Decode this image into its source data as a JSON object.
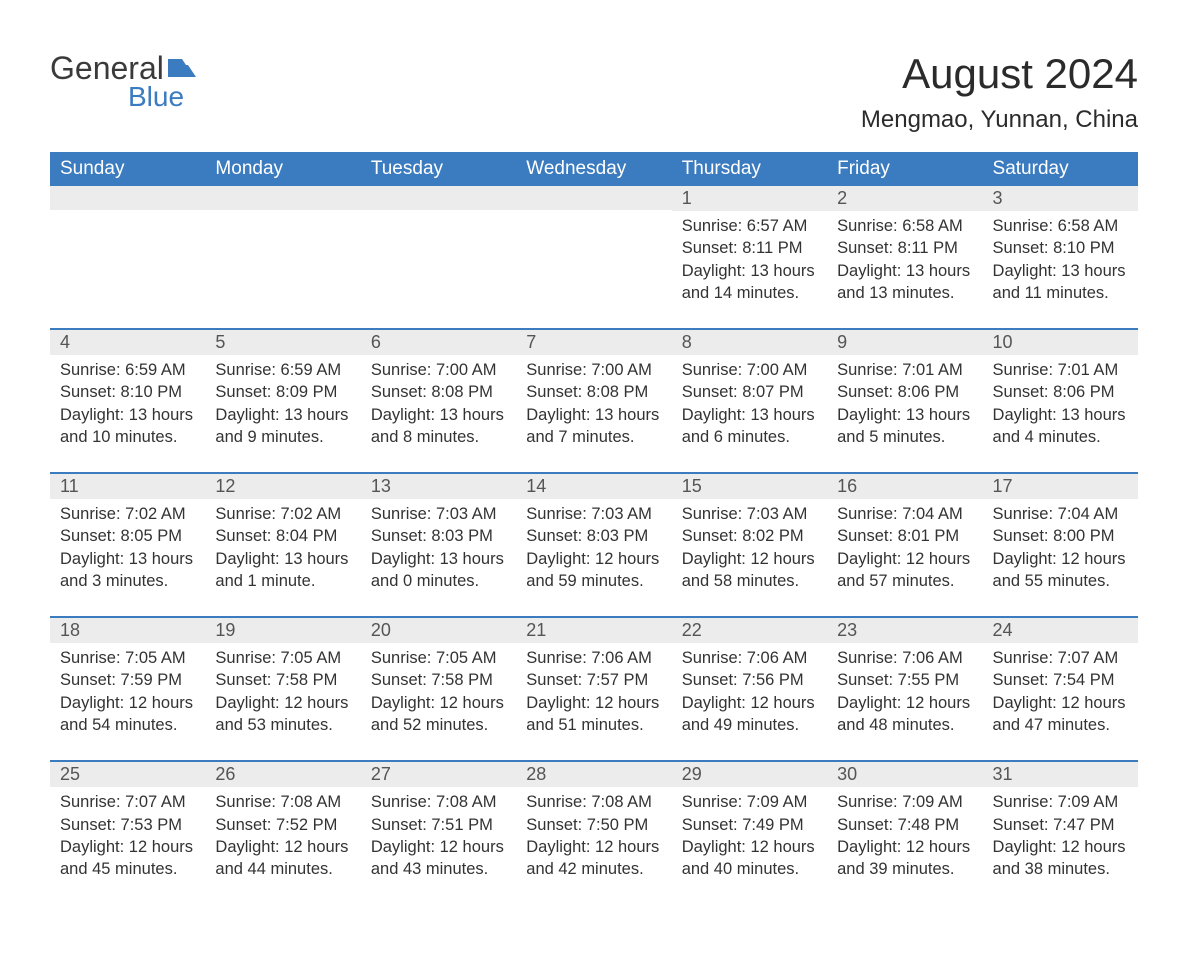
{
  "logo": {
    "word1": "General",
    "word2": "Blue"
  },
  "title": "August 2024",
  "location": "Mengmao, Yunnan, China",
  "colors": {
    "header_bg": "#3b7bbf",
    "header_text": "#ffffff",
    "day_bar_bg": "#ececec",
    "day_bar_border": "#3b7bbf",
    "body_text": "#333333",
    "page_bg": "#ffffff"
  },
  "fonts": {
    "family": "Arial",
    "title_size": 42,
    "location_size": 24,
    "header_size": 19,
    "daynum_size": 18,
    "body_size": 16.5
  },
  "layout": {
    "columns": 7,
    "rows": 5,
    "first_day_column_index": 4
  },
  "weekdays": [
    "Sunday",
    "Monday",
    "Tuesday",
    "Wednesday",
    "Thursday",
    "Friday",
    "Saturday"
  ],
  "days": [
    {
      "n": 1,
      "sunrise": "6:57 AM",
      "sunset": "8:11 PM",
      "daylight": "13 hours and 14 minutes."
    },
    {
      "n": 2,
      "sunrise": "6:58 AM",
      "sunset": "8:11 PM",
      "daylight": "13 hours and 13 minutes."
    },
    {
      "n": 3,
      "sunrise": "6:58 AM",
      "sunset": "8:10 PM",
      "daylight": "13 hours and 11 minutes."
    },
    {
      "n": 4,
      "sunrise": "6:59 AM",
      "sunset": "8:10 PM",
      "daylight": "13 hours and 10 minutes."
    },
    {
      "n": 5,
      "sunrise": "6:59 AM",
      "sunset": "8:09 PM",
      "daylight": "13 hours and 9 minutes."
    },
    {
      "n": 6,
      "sunrise": "7:00 AM",
      "sunset": "8:08 PM",
      "daylight": "13 hours and 8 minutes."
    },
    {
      "n": 7,
      "sunrise": "7:00 AM",
      "sunset": "8:08 PM",
      "daylight": "13 hours and 7 minutes."
    },
    {
      "n": 8,
      "sunrise": "7:00 AM",
      "sunset": "8:07 PM",
      "daylight": "13 hours and 6 minutes."
    },
    {
      "n": 9,
      "sunrise": "7:01 AM",
      "sunset": "8:06 PM",
      "daylight": "13 hours and 5 minutes."
    },
    {
      "n": 10,
      "sunrise": "7:01 AM",
      "sunset": "8:06 PM",
      "daylight": "13 hours and 4 minutes."
    },
    {
      "n": 11,
      "sunrise": "7:02 AM",
      "sunset": "8:05 PM",
      "daylight": "13 hours and 3 minutes."
    },
    {
      "n": 12,
      "sunrise": "7:02 AM",
      "sunset": "8:04 PM",
      "daylight": "13 hours and 1 minute."
    },
    {
      "n": 13,
      "sunrise": "7:03 AM",
      "sunset": "8:03 PM",
      "daylight": "13 hours and 0 minutes."
    },
    {
      "n": 14,
      "sunrise": "7:03 AM",
      "sunset": "8:03 PM",
      "daylight": "12 hours and 59 minutes."
    },
    {
      "n": 15,
      "sunrise": "7:03 AM",
      "sunset": "8:02 PM",
      "daylight": "12 hours and 58 minutes."
    },
    {
      "n": 16,
      "sunrise": "7:04 AM",
      "sunset": "8:01 PM",
      "daylight": "12 hours and 57 minutes."
    },
    {
      "n": 17,
      "sunrise": "7:04 AM",
      "sunset": "8:00 PM",
      "daylight": "12 hours and 55 minutes."
    },
    {
      "n": 18,
      "sunrise": "7:05 AM",
      "sunset": "7:59 PM",
      "daylight": "12 hours and 54 minutes."
    },
    {
      "n": 19,
      "sunrise": "7:05 AM",
      "sunset": "7:58 PM",
      "daylight": "12 hours and 53 minutes."
    },
    {
      "n": 20,
      "sunrise": "7:05 AM",
      "sunset": "7:58 PM",
      "daylight": "12 hours and 52 minutes."
    },
    {
      "n": 21,
      "sunrise": "7:06 AM",
      "sunset": "7:57 PM",
      "daylight": "12 hours and 51 minutes."
    },
    {
      "n": 22,
      "sunrise": "7:06 AM",
      "sunset": "7:56 PM",
      "daylight": "12 hours and 49 minutes."
    },
    {
      "n": 23,
      "sunrise": "7:06 AM",
      "sunset": "7:55 PM",
      "daylight": "12 hours and 48 minutes."
    },
    {
      "n": 24,
      "sunrise": "7:07 AM",
      "sunset": "7:54 PM",
      "daylight": "12 hours and 47 minutes."
    },
    {
      "n": 25,
      "sunrise": "7:07 AM",
      "sunset": "7:53 PM",
      "daylight": "12 hours and 45 minutes."
    },
    {
      "n": 26,
      "sunrise": "7:08 AM",
      "sunset": "7:52 PM",
      "daylight": "12 hours and 44 minutes."
    },
    {
      "n": 27,
      "sunrise": "7:08 AM",
      "sunset": "7:51 PM",
      "daylight": "12 hours and 43 minutes."
    },
    {
      "n": 28,
      "sunrise": "7:08 AM",
      "sunset": "7:50 PM",
      "daylight": "12 hours and 42 minutes."
    },
    {
      "n": 29,
      "sunrise": "7:09 AM",
      "sunset": "7:49 PM",
      "daylight": "12 hours and 40 minutes."
    },
    {
      "n": 30,
      "sunrise": "7:09 AM",
      "sunset": "7:48 PM",
      "daylight": "12 hours and 39 minutes."
    },
    {
      "n": 31,
      "sunrise": "7:09 AM",
      "sunset": "7:47 PM",
      "daylight": "12 hours and 38 minutes."
    }
  ],
  "labels": {
    "sunrise": "Sunrise:",
    "sunset": "Sunset:",
    "daylight": "Daylight:"
  }
}
